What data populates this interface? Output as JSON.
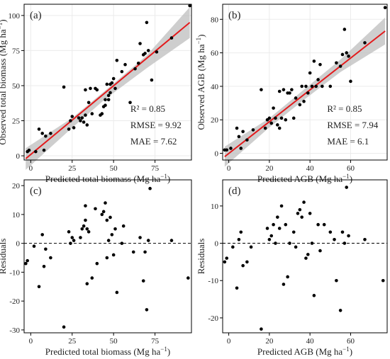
{
  "chart_data": [
    {
      "type": "scatter",
      "panel_label": "(a)",
      "xlabel": "Predicted total biomass",
      "xunit_pre": "(Mg ha",
      "xunit_sup": "−1",
      "xunit_post": ")",
      "ylabel": "Observed total biomass",
      "yunit_pre": "(Mg ha",
      "yunit_sup": "−1",
      "yunit_post": ")",
      "xlim": [
        -4,
        97
      ],
      "ylim": [
        -3,
        108
      ],
      "xticks": [
        0,
        25,
        50,
        75
      ],
      "yticks": [
        0,
        25,
        50,
        75,
        100
      ],
      "grid": true,
      "stats": [
        "R² = 0.85",
        "RMSE = 9.92",
        "MAE = 7.62"
      ],
      "regression": {
        "color": "#e31a1c",
        "x": [
          -3,
          96
        ],
        "y": [
          -2.0,
          95.0
        ]
      },
      "confidence_band": {
        "color": "#bdbdbd",
        "x": [
          -3,
          25,
          45,
          70,
          96
        ],
        "lower": [
          -10.0,
          20.0,
          40.5,
          62.5,
          84.0
        ],
        "upper": [
          5.5,
          27.0,
          46.5,
          71.5,
          106.0
        ]
      },
      "points": {
        "x": [
          -2,
          -1,
          3,
          5,
          7,
          8,
          9,
          12,
          20,
          23,
          24,
          25,
          26,
          29,
          30,
          31,
          32,
          33,
          33,
          34,
          35,
          36,
          37,
          39,
          40,
          42,
          43,
          44,
          45,
          45,
          46,
          47,
          47,
          48,
          48,
          49,
          50,
          51,
          52,
          55,
          57,
          60,
          63,
          65,
          66,
          68,
          69,
          70,
          71,
          73,
          76,
          85,
          96
        ],
        "y": [
          3,
          4,
          3,
          19,
          16,
          4,
          14,
          16,
          49,
          19,
          25,
          28,
          20,
          27,
          25,
          27,
          24,
          29,
          47,
          22,
          38,
          48,
          30,
          48,
          47,
          29,
          30,
          35,
          36,
          40,
          51,
          40,
          43,
          45,
          51,
          52,
          55,
          48,
          68,
          60,
          65,
          38,
          62,
          66,
          80,
          72,
          73,
          95,
          75,
          54,
          74,
          84,
          107
        ]
      }
    },
    {
      "type": "scatter",
      "panel_label": "(b)",
      "xlabel": "Predicted AGB",
      "xunit_pre": "(Mg ha",
      "xunit_sup": "−1",
      "xunit_post": ")",
      "ylabel": "Observed AGB",
      "yunit_pre": "(Mg ha",
      "yunit_sup": "−1",
      "yunit_post": ")",
      "xlim": [
        -3,
        78
      ],
      "ylim": [
        -4,
        89
      ],
      "xticks": [
        0,
        20,
        40,
        60
      ],
      "yticks": [
        0,
        20,
        40,
        60,
        80
      ],
      "grid": true,
      "stats": [
        "R² = 0.85",
        "RMSE = 7.94",
        "MAE = 6.1"
      ],
      "regression": {
        "color": "#e31a1c",
        "x": [
          -2,
          77
        ],
        "y": [
          -2.0,
          73.0
        ]
      },
      "confidence_band": {
        "color": "#bdbdbd",
        "x": [
          -2,
          20,
          36,
          55,
          77
        ],
        "lower": [
          -8.0,
          15.5,
          31.0,
          48.5,
          65.0
        ],
        "upper": [
          4.0,
          21.0,
          37.0,
          56.0,
          81.0
        ]
      },
      "points": {
        "x": [
          -2,
          -1,
          1,
          4,
          5,
          6,
          7,
          9,
          12,
          16,
          18,
          19,
          20,
          21,
          22,
          23,
          24,
          25,
          25,
          26,
          27,
          28,
          29,
          30,
          31,
          32,
          33,
          35,
          36,
          37,
          38,
          39,
          40,
          41,
          42,
          43,
          44,
          45,
          46,
          50,
          53,
          55,
          56,
          57,
          58,
          59,
          60,
          67,
          77
        ],
        "y": [
          2,
          2,
          3,
          15,
          10,
          3,
          13,
          8,
          14,
          38,
          15,
          20,
          21,
          18,
          27,
          21,
          17,
          15,
          37,
          21,
          38,
          20,
          36,
          36,
          38,
          21,
          33,
          29,
          40,
          31,
          40,
          36,
          48,
          40,
          55,
          40,
          44,
          53,
          40,
          40,
          54,
          52,
          59,
          74,
          60,
          58,
          43,
          66,
          87
        ]
      }
    },
    {
      "type": "scatter",
      "panel_label": "(c)",
      "xlabel": "Predicted total biomass",
      "xunit_pre": "(Mg ha",
      "xunit_sup": "−1",
      "xunit_post": ")",
      "ylabel": "Residuals",
      "xlim": [
        -4,
        97
      ],
      "ylim": [
        -31,
        22
      ],
      "xticks": [
        0,
        25,
        50,
        75
      ],
      "yticks": [
        -30,
        -20,
        -10,
        0,
        10,
        20
      ],
      "grid": false,
      "reference_line": {
        "y": 0,
        "style": "dashed"
      },
      "points": {
        "x": [
          -3,
          -2,
          2,
          5,
          7,
          8,
          9,
          12,
          20,
          23,
          24,
          25,
          26,
          30,
          31,
          32,
          33,
          33,
          34,
          34,
          35,
          37,
          39,
          40,
          43,
          44,
          45,
          46,
          46,
          47,
          48,
          49,
          50,
          51,
          52,
          55,
          56,
          62,
          66,
          68,
          69,
          70,
          71,
          72,
          85,
          95
        ],
        "y": [
          -7,
          -6,
          -1,
          -15,
          3,
          -8,
          -2,
          -5,
          -29,
          4,
          0,
          2,
          1,
          2,
          5,
          6,
          8,
          13,
          5,
          -14,
          4,
          -12,
          12,
          -7,
          10,
          11,
          14,
          8,
          -5,
          1,
          9,
          3,
          -4,
          5,
          -17,
          0,
          6,
          -3,
          2,
          -13,
          -3,
          -23,
          1,
          19,
          1,
          -12
        ]
      }
    },
    {
      "type": "scatter",
      "panel_label": "(d)",
      "xlabel": "Predicted AGB",
      "xunit_pre": "(Mg ha",
      "xunit_sup": "−1",
      "xunit_post": ")",
      "ylabel": "Residuals",
      "xlim": [
        -3,
        78
      ],
      "ylim": [
        -24,
        17
      ],
      "xticks": [
        0,
        20,
        40,
        60
      ],
      "yticks": [
        -20,
        -10,
        0,
        10
      ],
      "grid": false,
      "reference_line": {
        "y": 0,
        "style": "dashed"
      },
      "points": {
        "x": [
          -2,
          -1,
          2,
          4,
          5,
          6,
          7,
          9,
          11,
          16,
          19,
          20,
          21,
          22,
          23,
          24,
          25,
          26,
          27,
          28,
          29,
          30,
          32,
          33,
          34,
          35,
          36,
          37,
          38,
          39,
          40,
          41,
          42,
          44,
          45,
          47,
          50,
          52,
          53,
          55,
          56,
          57,
          58,
          59,
          67,
          76
        ],
        "y": [
          -5,
          -4,
          -1,
          -12,
          1,
          3,
          -6,
          -5,
          -1,
          -23,
          4,
          1,
          2,
          5,
          0,
          7,
          4,
          10,
          -11,
          5,
          -9,
          0,
          3,
          -1,
          8,
          9,
          7,
          11,
          -4,
          -3,
          8,
          0,
          -14,
          5,
          -2,
          5,
          3,
          1,
          -10,
          -18,
          3,
          0,
          15,
          2,
          1,
          -10
        ]
      }
    }
  ]
}
